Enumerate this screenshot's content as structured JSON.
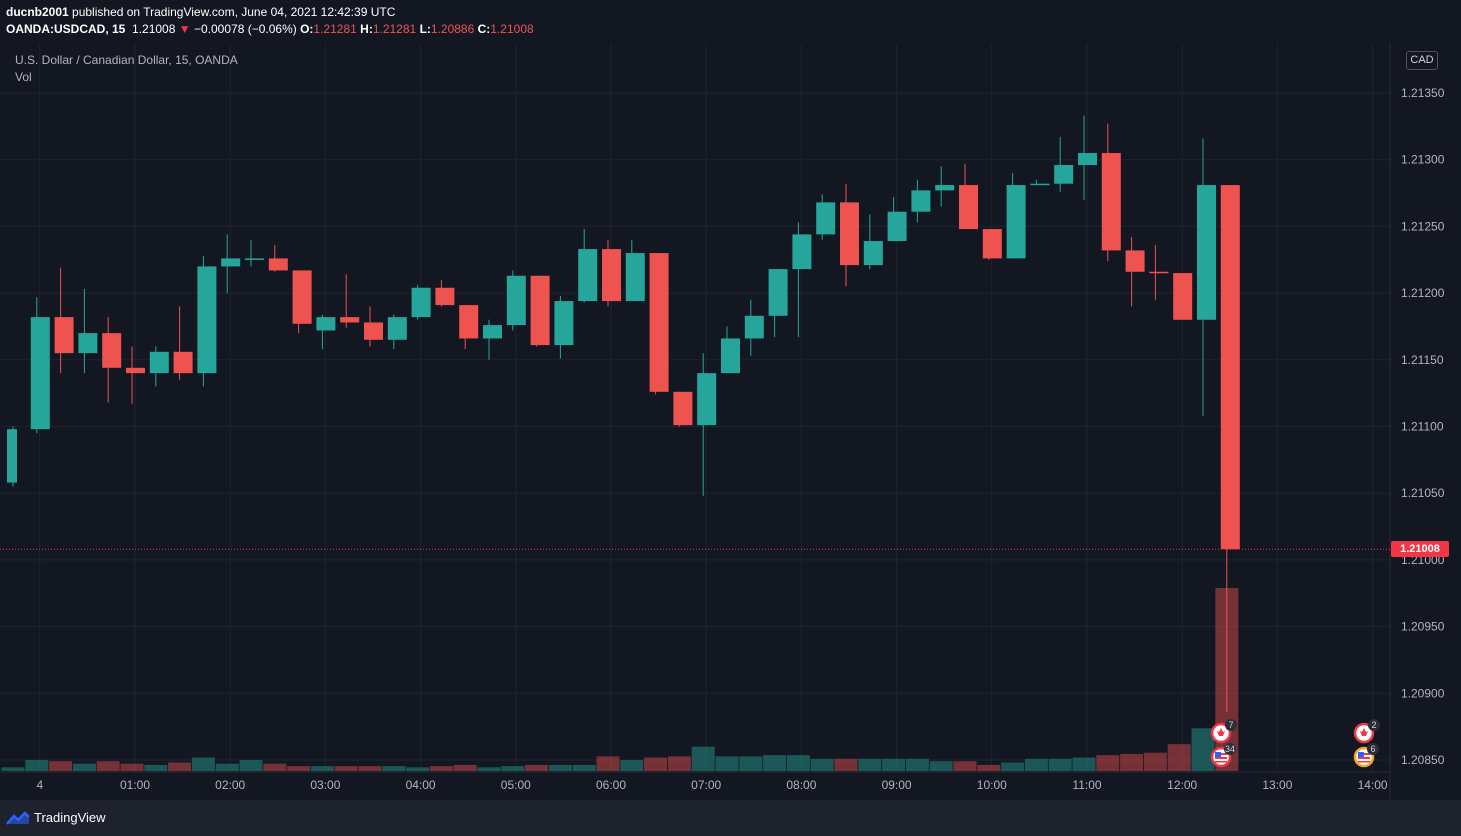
{
  "header": {
    "author": "ducnb2001",
    "published_text": " published on TradingView.com, June 04, 2021 12:42:39 UTC",
    "symbol": "OANDA:USDCAD, 15",
    "last": "1.21008",
    "change_arrow": "▼",
    "change": "−0.00078 (−0.06%)",
    "o_label": "O:",
    "o_value": "1.21281",
    "h_label": "H:",
    "h_value": "1.21281",
    "l_label": "L:",
    "l_value": "1.20886",
    "c_label": "C:",
    "c_value": "1.21008"
  },
  "legend": {
    "title": "U.S. Dollar / Canadian Dollar, 15, OANDA",
    "volume": "Vol"
  },
  "price_axis": {
    "currency": "CAD",
    "last_price_tag": "1.21008"
  },
  "footer": {
    "brand": "TradingView",
    "icon": "tradingview-logo-icon"
  },
  "events": [
    {
      "icon": "canada-flag-icon",
      "count": "7"
    },
    {
      "icon": "us-flag-icon",
      "count": "34"
    },
    {
      "icon": "canada-flag-icon",
      "count": "2"
    },
    {
      "icon": "us-flag-icon",
      "count": "6"
    }
  ],
  "colors": {
    "background": "#131722",
    "up": "#26a69a",
    "down": "#ef5350",
    "grid": "#1f2430",
    "text": "#b2b5be"
  },
  "chart_data": {
    "type": "candlestick",
    "title": "U.S. Dollar / Canadian Dollar, 15, OANDA",
    "ylim": [
      1.2084,
      1.2138
    ],
    "y_ticks": [
      "1.21350",
      "1.21300",
      "1.21250",
      "1.21200",
      "1.21150",
      "1.21100",
      "1.21050",
      "1.21000",
      "1.20950",
      "1.20900",
      "1.20850"
    ],
    "y_tick_values": [
      1.2135,
      1.213,
      1.2125,
      1.212,
      1.2115,
      1.211,
      1.2105,
      1.21,
      1.2095,
      1.209,
      1.2085
    ],
    "x_ticks": [
      {
        "label": "4",
        "bar": 1
      },
      {
        "label": "01:00",
        "bar": 5
      },
      {
        "label": "02:00",
        "bar": 9
      },
      {
        "label": "03:00",
        "bar": 13
      },
      {
        "label": "04:00",
        "bar": 17
      },
      {
        "label": "05:00",
        "bar": 21
      },
      {
        "label": "06:00",
        "bar": 25
      },
      {
        "label": "07:00",
        "bar": 29
      },
      {
        "label": "08:00",
        "bar": 33
      },
      {
        "label": "09:00",
        "bar": 37
      },
      {
        "label": "10:00",
        "bar": 41
      },
      {
        "label": "11:00",
        "bar": 45
      },
      {
        "label": "12:00",
        "bar": 49
      },
      {
        "label": "13:00",
        "bar": 53
      },
      {
        "label": "14:00",
        "bar": 57
      }
    ],
    "bars_visible": 58,
    "candles": [
      {
        "o": 1.21058,
        "h": 1.211,
        "l": 1.21055,
        "c": 1.21098,
        "v": 3
      },
      {
        "o": 1.21098,
        "h": 1.21197,
        "l": 1.21095,
        "c": 1.21182,
        "v": 9
      },
      {
        "o": 1.21182,
        "h": 1.21219,
        "l": 1.2114,
        "c": 1.21155,
        "v": 8
      },
      {
        "o": 1.21155,
        "h": 1.21203,
        "l": 1.2114,
        "c": 1.2117,
        "v": 6
      },
      {
        "o": 1.2117,
        "h": 1.21182,
        "l": 1.21118,
        "c": 1.21144,
        "v": 8
      },
      {
        "o": 1.21144,
        "h": 1.2116,
        "l": 1.21117,
        "c": 1.2114,
        "v": 6
      },
      {
        "o": 1.2114,
        "h": 1.2116,
        "l": 1.2113,
        "c": 1.21156,
        "v": 5
      },
      {
        "o": 1.21156,
        "h": 1.2119,
        "l": 1.21135,
        "c": 1.2114,
        "v": 7
      },
      {
        "o": 1.2114,
        "h": 1.21228,
        "l": 1.2113,
        "c": 1.2122,
        "v": 11
      },
      {
        "o": 1.2122,
        "h": 1.21244,
        "l": 1.212,
        "c": 1.21226,
        "v": 6
      },
      {
        "o": 1.21226,
        "h": 1.2124,
        "l": 1.2122,
        "c": 1.21226,
        "v": 9
      },
      {
        "o": 1.21226,
        "h": 1.21236,
        "l": 1.21216,
        "c": 1.21217,
        "v": 6
      },
      {
        "o": 1.21217,
        "h": 1.21217,
        "l": 1.2117,
        "c": 1.21177,
        "v": 4
      },
      {
        "o": 1.21172,
        "h": 1.21184,
        "l": 1.21158,
        "c": 1.21182,
        "v": 4
      },
      {
        "o": 1.21182,
        "h": 1.21214,
        "l": 1.21174,
        "c": 1.21178,
        "v": 4
      },
      {
        "o": 1.21178,
        "h": 1.2119,
        "l": 1.2116,
        "c": 1.21165,
        "v": 4
      },
      {
        "o": 1.21165,
        "h": 1.21184,
        "l": 1.21158,
        "c": 1.21182,
        "v": 4
      },
      {
        "o": 1.21182,
        "h": 1.21206,
        "l": 1.2118,
        "c": 1.21204,
        "v": 3
      },
      {
        "o": 1.21204,
        "h": 1.2121,
        "l": 1.2119,
        "c": 1.21191,
        "v": 4
      },
      {
        "o": 1.21191,
        "h": 1.21191,
        "l": 1.21158,
        "c": 1.21166,
        "v": 5
      },
      {
        "o": 1.21166,
        "h": 1.2118,
        "l": 1.2115,
        "c": 1.21176,
        "v": 3
      },
      {
        "o": 1.21176,
        "h": 1.21217,
        "l": 1.21172,
        "c": 1.21213,
        "v": 4
      },
      {
        "o": 1.21213,
        "h": 1.21213,
        "l": 1.2116,
        "c": 1.21161,
        "v": 5
      },
      {
        "o": 1.21161,
        "h": 1.21198,
        "l": 1.21151,
        "c": 1.21194,
        "v": 5
      },
      {
        "o": 1.21194,
        "h": 1.21248,
        "l": 1.21193,
        "c": 1.21233,
        "v": 5
      },
      {
        "o": 1.21233,
        "h": 1.2124,
        "l": 1.2119,
        "c": 1.21194,
        "v": 12
      },
      {
        "o": 1.21194,
        "h": 1.2124,
        "l": 1.21194,
        "c": 1.2123,
        "v": 9
      },
      {
        "o": 1.2123,
        "h": 1.2123,
        "l": 1.21124,
        "c": 1.21126,
        "v": 11
      },
      {
        "o": 1.21126,
        "h": 1.21126,
        "l": 1.211,
        "c": 1.21101,
        "v": 12
      },
      {
        "o": 1.21101,
        "h": 1.21155,
        "l": 1.21048,
        "c": 1.2114,
        "v": 20
      },
      {
        "o": 1.2114,
        "h": 1.21175,
        "l": 1.2114,
        "c": 1.21166,
        "v": 12
      },
      {
        "o": 1.21166,
        "h": 1.21195,
        "l": 1.21153,
        "c": 1.21183,
        "v": 12
      },
      {
        "o": 1.21183,
        "h": 1.21218,
        "l": 1.21167,
        "c": 1.21218,
        "v": 13
      },
      {
        "o": 1.21218,
        "h": 1.21253,
        "l": 1.21167,
        "c": 1.21244,
        "v": 13
      },
      {
        "o": 1.21244,
        "h": 1.21274,
        "l": 1.2124,
        "c": 1.21268,
        "v": 10
      },
      {
        "o": 1.21268,
        "h": 1.21282,
        "l": 1.21205,
        "c": 1.21221,
        "v": 10
      },
      {
        "o": 1.21221,
        "h": 1.21259,
        "l": 1.21218,
        "c": 1.21239,
        "v": 10
      },
      {
        "o": 1.21239,
        "h": 1.21272,
        "l": 1.21239,
        "c": 1.21261,
        "v": 10
      },
      {
        "o": 1.21261,
        "h": 1.21285,
        "l": 1.21253,
        "c": 1.21277,
        "v": 10
      },
      {
        "o": 1.21277,
        "h": 1.21295,
        "l": 1.21265,
        "c": 1.21281,
        "v": 8
      },
      {
        "o": 1.21281,
        "h": 1.21297,
        "l": 1.21248,
        "c": 1.21248,
        "v": 8
      },
      {
        "o": 1.21248,
        "h": 1.21248,
        "l": 1.21225,
        "c": 1.21226,
        "v": 5
      },
      {
        "o": 1.21226,
        "h": 1.2129,
        "l": 1.21226,
        "c": 1.21281,
        "v": 7
      },
      {
        "o": 1.21281,
        "h": 1.21285,
        "l": 1.21281,
        "c": 1.21282,
        "v": 10
      },
      {
        "o": 1.21282,
        "h": 1.21317,
        "l": 1.21276,
        "c": 1.21296,
        "v": 10
      },
      {
        "o": 1.21296,
        "h": 1.21333,
        "l": 1.2127,
        "c": 1.21305,
        "v": 11
      },
      {
        "o": 1.21305,
        "h": 1.21327,
        "l": 1.21224,
        "c": 1.21232,
        "v": 13
      },
      {
        "o": 1.21232,
        "h": 1.21242,
        "l": 1.2119,
        "c": 1.21216,
        "v": 14
      },
      {
        "o": 1.21216,
        "h": 1.21236,
        "l": 1.21195,
        "c": 1.21215,
        "v": 15
      },
      {
        "o": 1.21215,
        "h": 1.21215,
        "l": 1.2118,
        "c": 1.2118,
        "v": 22
      },
      {
        "o": 1.2118,
        "h": 1.21316,
        "l": 1.21108,
        "c": 1.21281,
        "v": 35
      },
      {
        "o": 1.21281,
        "h": 1.21281,
        "l": 1.20886,
        "c": 1.21008,
        "v": 150
      }
    ]
  }
}
